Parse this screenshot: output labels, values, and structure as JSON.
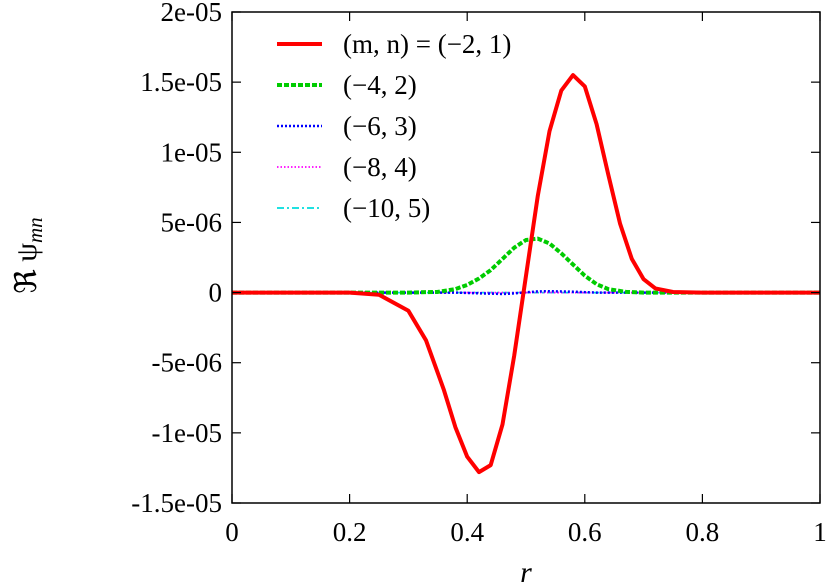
{
  "chart_data": {
    "type": "line",
    "xlabel": "r",
    "ylabel": "ℜ ψ",
    "ylabel_sub": "mn",
    "xlim": [
      0,
      1
    ],
    "ylim": [
      -1.5e-05,
      2e-05
    ],
    "x_ticks": [
      0,
      0.2,
      0.4,
      0.6,
      0.8,
      1
    ],
    "x_tick_labels": [
      "0",
      "0.2",
      "0.4",
      "0.6",
      "0.8",
      "1"
    ],
    "y_ticks": [
      -1.5e-05,
      -1e-05,
      -5e-06,
      0,
      5e-06,
      1e-05,
      1.5e-05,
      2e-05
    ],
    "y_tick_labels": [
      "-1.5e-05",
      "-1e-05",
      "-5e-06",
      "0",
      "5e-06",
      "1e-05",
      "1.5e-05",
      "2e-05"
    ],
    "grid": false,
    "legend_position": "top-left",
    "series": [
      {
        "name": "(m, n) = (−2, 1)",
        "color": "#ff0000",
        "style": "solid",
        "x": [
          0,
          0.1,
          0.2,
          0.25,
          0.3,
          0.33,
          0.36,
          0.38,
          0.4,
          0.42,
          0.44,
          0.46,
          0.48,
          0.5,
          0.52,
          0.54,
          0.56,
          0.58,
          0.6,
          0.62,
          0.64,
          0.66,
          0.68,
          0.7,
          0.72,
          0.75,
          0.8,
          0.9,
          1.0
        ],
        "y": [
          0,
          0,
          0,
          -1.5e-07,
          -1.3e-06,
          -3.4e-06,
          -6.9e-06,
          -9.6e-06,
          -1.17e-05,
          -1.28e-05,
          -1.23e-05,
          -9.4e-06,
          -4.5e-06,
          1.2e-06,
          6.9e-06,
          1.15e-05,
          1.44e-05,
          1.55e-05,
          1.47e-05,
          1.2e-05,
          8.4e-06,
          4.9e-06,
          2.4e-06,
          9.5e-07,
          3e-07,
          4e-08,
          0,
          0,
          0
        ]
      },
      {
        "name": "(−4, 2)",
        "color": "#00cc00",
        "style": "dashed",
        "x": [
          0,
          0.3,
          0.35,
          0.38,
          0.4,
          0.42,
          0.44,
          0.46,
          0.48,
          0.5,
          0.52,
          0.54,
          0.56,
          0.58,
          0.6,
          0.62,
          0.64,
          0.67,
          0.7,
          1.0
        ],
        "y": [
          0,
          0,
          5e-08,
          2.5e-07,
          5.5e-07,
          1e-06,
          1.6e-06,
          2.4e-06,
          3.2e-06,
          3.75e-06,
          3.85e-06,
          3.5e-06,
          2.8e-06,
          2e-06,
          1.2e-06,
          6e-07,
          2.5e-07,
          5e-08,
          0,
          0
        ]
      },
      {
        "name": "(−6, 3)",
        "color": "#0000ff",
        "style": "dotted",
        "x": [
          0,
          0.38,
          0.42,
          0.46,
          0.48,
          0.5,
          0.52,
          0.54,
          0.58,
          0.62,
          1.0
        ],
        "y": [
          0,
          0,
          -5e-08,
          -1e-07,
          -6e-08,
          2e-08,
          8e-08,
          1e-07,
          6e-08,
          0,
          0
        ]
      },
      {
        "name": "(−8, 4)",
        "color": "#ff00ff",
        "style": "dotted-fine",
        "x": [
          0,
          0.44,
          0.48,
          0.5,
          0.52,
          0.56,
          1.0
        ],
        "y": [
          0,
          0,
          -1e-08,
          0,
          1e-08,
          0,
          0
        ]
      },
      {
        "name": "(−10, 5)",
        "color": "#00dddd",
        "style": "dashdot",
        "x": [
          0,
          1.0
        ],
        "y": [
          0,
          0
        ]
      }
    ]
  }
}
